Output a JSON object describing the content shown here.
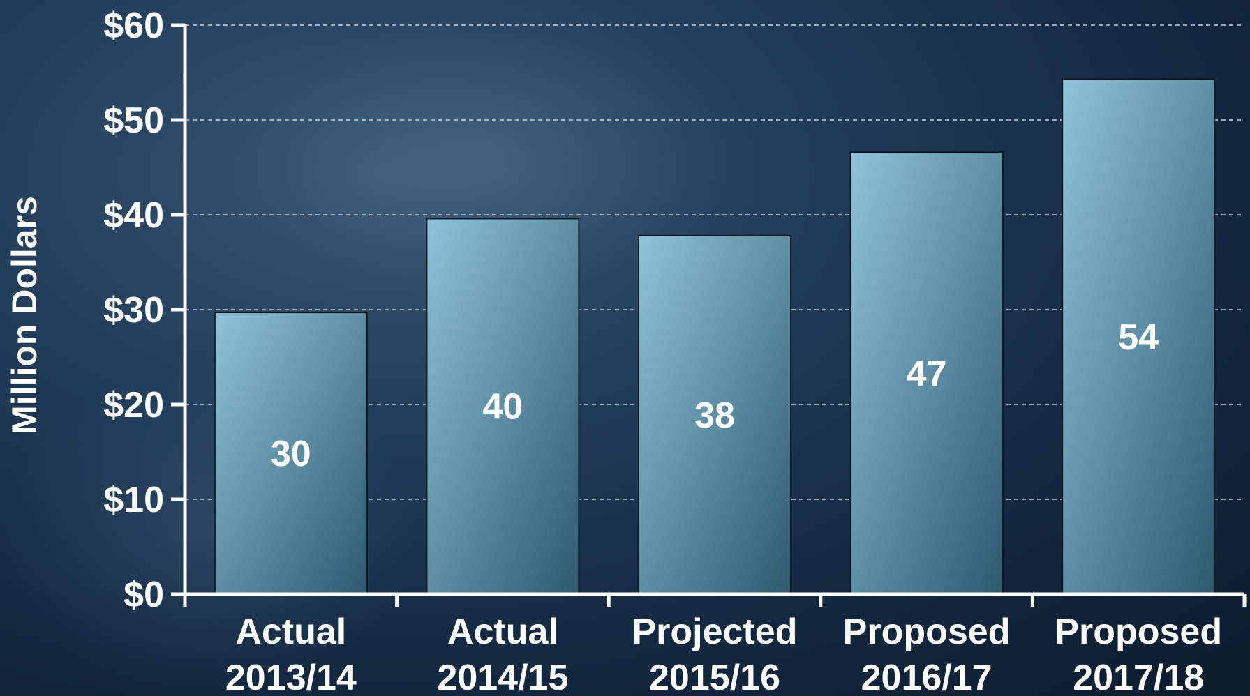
{
  "chart_data": {
    "type": "bar",
    "categories": [
      [
        "Actual",
        "2013/14"
      ],
      [
        "Actual",
        "2014/15"
      ],
      [
        "Projected",
        "2015/16"
      ],
      [
        "Proposed",
        "2016/17"
      ],
      [
        "Proposed",
        "2017/18"
      ]
    ],
    "values": [
      29.7,
      39.6,
      37.8,
      46.6,
      54.3
    ],
    "data_labels": [
      "30",
      "40",
      "38",
      "47",
      "54"
    ],
    "ylabel": "Million Dollars",
    "ylim": [
      0,
      60
    ],
    "yticks": [
      0,
      10,
      20,
      30,
      40,
      50,
      60
    ],
    "ytick_labels": [
      "$0",
      "$10",
      "$20",
      "$30",
      "$40",
      "$50",
      "$60"
    ],
    "grid": true,
    "colors": {
      "bar_light": "#8ec3d8",
      "bar_dark": "#2e5a6e",
      "axis": "#ffffff",
      "gridline": "#c9d6e2",
      "text": "#ffffff"
    }
  }
}
